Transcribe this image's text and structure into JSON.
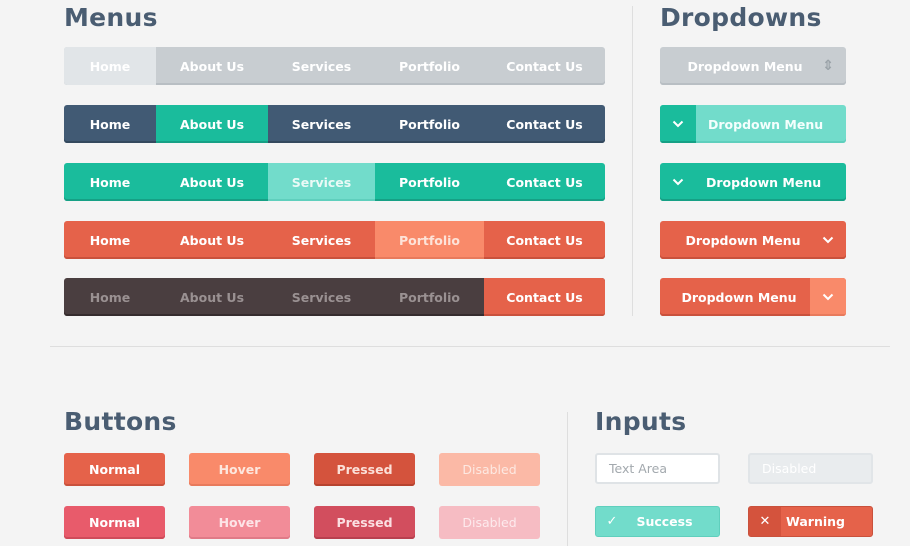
{
  "sections": {
    "menus": "Menus",
    "dropdowns": "Dropdowns",
    "buttons": "Buttons",
    "inputs": "Inputs"
  },
  "menu_items": [
    "Home",
    "About Us",
    "Services",
    "Portfolio",
    "Contact Us"
  ],
  "dropdown_label": "Dropdown Menu",
  "icons": {
    "updown": "⇕",
    "chevron": "⌄",
    "check": "✓",
    "cross": "✕"
  },
  "buttons": {
    "normal": "Normal",
    "hover": "Hover",
    "pressed": "Pressed",
    "disabled": "Disabled"
  },
  "inputs": {
    "text_area": "Text Area",
    "disabled": "Disabled",
    "success": "Success",
    "warning": "Warning"
  },
  "colors": {
    "gray": "#c8cdd1",
    "navy": "#415a74",
    "teal": "#1abc9c",
    "orange": "#e5624a",
    "dark": "#4a3e40",
    "pink": "#e85b6b",
    "heading": "#4a5d72"
  }
}
